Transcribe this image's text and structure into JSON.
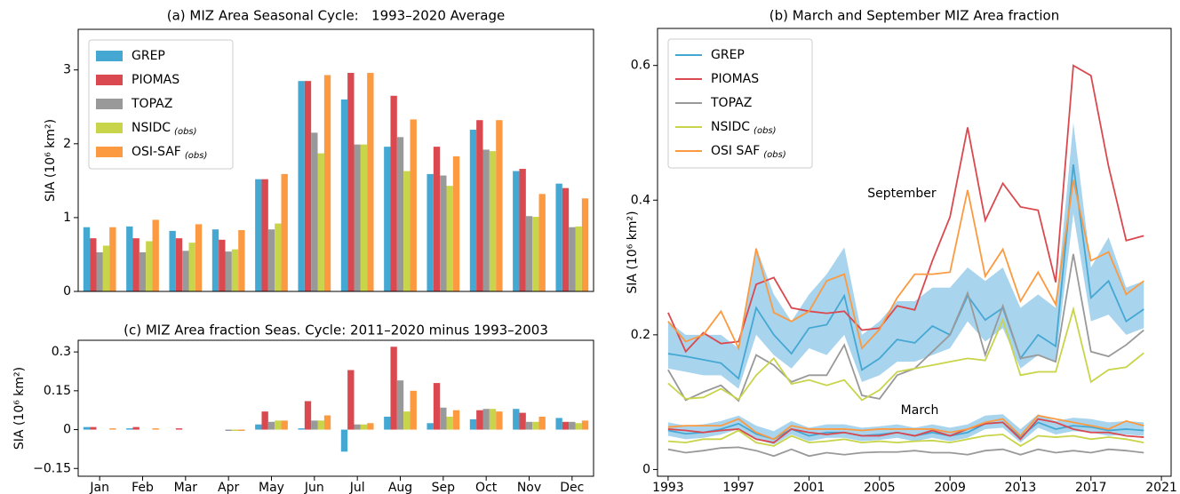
{
  "chart_data": [
    {
      "type": "bar",
      "title": "(a) MIZ Area Seasonal Cycle:   1993–2020 Average",
      "ylabel": "SIA (10⁶ km²)",
      "ylim": [
        0,
        3.55
      ],
      "yticks": [
        0,
        1,
        2,
        3
      ],
      "legend": "upper left",
      "series": [
        {
          "name": "GREP",
          "color": "#45a8d3",
          "values": [
            0.87,
            0.88,
            0.82,
            0.84,
            1.52,
            2.85,
            2.6,
            1.96,
            1.59,
            2.19,
            1.63,
            1.46
          ]
        },
        {
          "name": "PIOMAS",
          "color": "#d9494f",
          "values": [
            0.72,
            0.72,
            0.72,
            0.7,
            1.52,
            2.85,
            2.96,
            2.65,
            1.96,
            2.32,
            1.66,
            1.4
          ]
        },
        {
          "name": "TOPAZ",
          "color": "#999999",
          "values": [
            0.53,
            0.53,
            0.55,
            0.54,
            0.84,
            2.15,
            1.99,
            2.09,
            1.57,
            1.92,
            1.02,
            0.87
          ]
        },
        {
          "name": "NSIDC",
          "name_note": "(obs)",
          "color": "#c8d44a",
          "values": [
            0.62,
            0.68,
            0.66,
            0.57,
            0.92,
            1.87,
            1.99,
            1.63,
            1.43,
            1.9,
            1.01,
            0.88
          ]
        },
        {
          "name": "OSI-SAF",
          "name_note": "(obs)",
          "color": "#fb9a40",
          "values": [
            0.87,
            0.97,
            0.91,
            0.83,
            1.59,
            2.93,
            2.96,
            2.33,
            1.83,
            2.32,
            1.32,
            1.26
          ]
        }
      ]
    },
    {
      "type": "line",
      "title": "(b) March and September MIZ Area fraction",
      "ylabel": "SIA (10⁶ km²)",
      "xlim": [
        1992.4,
        2021.55
      ],
      "xticks": [
        1993,
        1997,
        2001,
        2005,
        2009,
        2013,
        2017,
        2021
      ],
      "ylim": [
        -0.01,
        0.655
      ],
      "yticks": [
        0,
        0.2,
        0.4,
        0.6
      ],
      "legend": "upper left",
      "band_color": "#a8d4ee",
      "annotations": [
        "September",
        "March"
      ],
      "x": [
        1993,
        1994,
        1995,
        1996,
        1997,
        1998,
        1999,
        2000,
        2001,
        2002,
        2003,
        2004,
        2005,
        2006,
        2007,
        2008,
        2009,
        2010,
        2011,
        2012,
        2013,
        2014,
        2015,
        2016,
        2017,
        2018,
        2019,
        2020
      ],
      "band": {
        "september": {
          "low": [
            0.15,
            0.145,
            0.14,
            0.14,
            0.12,
            0.2,
            0.17,
            0.15,
            0.18,
            0.17,
            0.2,
            0.13,
            0.14,
            0.16,
            0.16,
            0.17,
            0.18,
            0.22,
            0.19,
            0.21,
            0.15,
            0.17,
            0.16,
            0.38,
            0.22,
            0.23,
            0.2,
            0.21
          ],
          "high": [
            0.22,
            0.2,
            0.2,
            0.2,
            0.18,
            0.33,
            0.26,
            0.22,
            0.26,
            0.29,
            0.33,
            0.2,
            0.22,
            0.25,
            0.25,
            0.27,
            0.27,
            0.3,
            0.28,
            0.3,
            0.24,
            0.26,
            0.24,
            0.515,
            0.3,
            0.345,
            0.27,
            0.28
          ]
        },
        "march": {
          "low": [
            0.05,
            0.045,
            0.047,
            0.052,
            0.06,
            0.045,
            0.037,
            0.052,
            0.042,
            0.047,
            0.047,
            0.042,
            0.044,
            0.047,
            0.042,
            0.047,
            0.042,
            0.047,
            0.06,
            0.062,
            0.04,
            0.062,
            0.052,
            0.057,
            0.055,
            0.05,
            0.052,
            0.05
          ],
          "high": [
            0.07,
            0.065,
            0.067,
            0.072,
            0.08,
            0.065,
            0.057,
            0.072,
            0.062,
            0.067,
            0.067,
            0.062,
            0.064,
            0.067,
            0.062,
            0.067,
            0.062,
            0.067,
            0.08,
            0.082,
            0.06,
            0.082,
            0.072,
            0.077,
            0.075,
            0.07,
            0.072,
            0.07
          ]
        }
      },
      "series": [
        {
          "name": "GREP",
          "color": "#45a8d3",
          "september": [
            0.172,
            0.168,
            0.163,
            0.158,
            0.135,
            0.24,
            0.2,
            0.172,
            0.21,
            0.215,
            0.258,
            0.148,
            0.165,
            0.193,
            0.188,
            0.213,
            0.2,
            0.258,
            0.222,
            0.24,
            0.165,
            0.2,
            0.183,
            0.453,
            0.255,
            0.28,
            0.22,
            0.238
          ],
          "march": [
            0.058,
            0.053,
            0.055,
            0.06,
            0.068,
            0.053,
            0.045,
            0.06,
            0.05,
            0.055,
            0.055,
            0.05,
            0.052,
            0.055,
            0.05,
            0.055,
            0.05,
            0.055,
            0.068,
            0.07,
            0.048,
            0.07,
            0.06,
            0.065,
            0.063,
            0.058,
            0.06,
            0.058
          ]
        },
        {
          "name": "PIOMAS",
          "color": "#d9494f",
          "september": [
            0.233,
            0.175,
            0.203,
            0.187,
            0.19,
            0.275,
            0.285,
            0.24,
            0.235,
            0.232,
            0.235,
            0.207,
            0.21,
            0.243,
            0.237,
            0.31,
            0.375,
            0.508,
            0.37,
            0.425,
            0.39,
            0.385,
            0.278,
            0.6,
            0.585,
            0.45,
            0.34,
            0.347
          ],
          "march": [
            0.06,
            0.058,
            0.055,
            0.058,
            0.06,
            0.045,
            0.04,
            0.06,
            0.055,
            0.052,
            0.055,
            0.05,
            0.05,
            0.055,
            0.05,
            0.058,
            0.05,
            0.06,
            0.068,
            0.07,
            0.045,
            0.075,
            0.07,
            0.06,
            0.055,
            0.055,
            0.05,
            0.048
          ]
        },
        {
          "name": "TOPAZ",
          "color": "#999999",
          "september": [
            0.148,
            0.103,
            0.115,
            0.125,
            0.102,
            0.17,
            0.155,
            0.13,
            0.14,
            0.14,
            0.185,
            0.11,
            0.105,
            0.14,
            0.15,
            0.175,
            0.2,
            0.262,
            0.17,
            0.243,
            0.165,
            0.17,
            0.16,
            0.32,
            0.175,
            0.168,
            0.185,
            0.207
          ],
          "march": [
            0.03,
            0.025,
            0.028,
            0.032,
            0.033,
            0.028,
            0.02,
            0.03,
            0.02,
            0.025,
            0.022,
            0.025,
            0.026,
            0.026,
            0.028,
            0.025,
            0.025,
            0.022,
            0.028,
            0.03,
            0.022,
            0.03,
            0.025,
            0.028,
            0.025,
            0.03,
            0.028,
            0.025
          ]
        },
        {
          "name": "NSIDC",
          "name_note": "(obs)",
          "color": "#c8d44a",
          "september": [
            0.128,
            0.105,
            0.107,
            0.12,
            0.104,
            0.14,
            0.165,
            0.127,
            0.133,
            0.125,
            0.133,
            0.103,
            0.118,
            0.145,
            0.15,
            0.155,
            0.16,
            0.165,
            0.162,
            0.222,
            0.14,
            0.145,
            0.145,
            0.238,
            0.13,
            0.148,
            0.152,
            0.173
          ],
          "march": [
            0.042,
            0.04,
            0.045,
            0.045,
            0.058,
            0.04,
            0.035,
            0.05,
            0.04,
            0.042,
            0.045,
            0.04,
            0.042,
            0.04,
            0.042,
            0.043,
            0.04,
            0.045,
            0.05,
            0.052,
            0.035,
            0.05,
            0.048,
            0.05,
            0.045,
            0.048,
            0.045,
            0.04
          ]
        },
        {
          "name": "OSI SAF",
          "name_note": "(obs)",
          "color": "#fb9a40",
          "september": [
            0.22,
            0.19,
            0.2,
            0.235,
            0.18,
            0.328,
            0.233,
            0.22,
            0.235,
            0.28,
            0.29,
            0.18,
            0.208,
            0.255,
            0.29,
            0.29,
            0.293,
            0.415,
            0.287,
            0.327,
            0.25,
            0.293,
            0.245,
            0.43,
            0.31,
            0.323,
            0.26,
            0.28
          ],
          "march": [
            0.063,
            0.065,
            0.065,
            0.065,
            0.075,
            0.055,
            0.045,
            0.065,
            0.06,
            0.06,
            0.06,
            0.058,
            0.06,
            0.06,
            0.06,
            0.06,
            0.055,
            0.06,
            0.07,
            0.075,
            0.05,
            0.08,
            0.075,
            0.07,
            0.065,
            0.06,
            0.072,
            0.065
          ]
        }
      ]
    },
    {
      "type": "bar",
      "title": "(c) MIZ Area fraction Seas. Cycle: 2011–2020 minus 1993–2003",
      "ylabel": "SIA (10⁶ km²)",
      "categories": [
        "Jan",
        "Feb",
        "Mar",
        "Apr",
        "May",
        "Jun",
        "Jul",
        "Aug",
        "Sep",
        "Oct",
        "Nov",
        "Dec"
      ],
      "ylim": [
        -0.18,
        0.345
      ],
      "yticks": [
        0.3,
        0.15,
        0,
        {
          "value": -0.15,
          "label": "−0.15"
        }
      ],
      "series": [
        {
          "name": "GREP",
          "color": "#45a8d3",
          "values": [
            0.01,
            0.005,
            0,
            0,
            0.02,
            0.005,
            -0.085,
            0.05,
            0.025,
            0.04,
            0.08,
            0.045
          ]
        },
        {
          "name": "PIOMAS",
          "color": "#d9494f",
          "values": [
            0.01,
            0.01,
            0.005,
            0,
            0.07,
            0.11,
            0.23,
            0.32,
            0.18,
            0.075,
            0.065,
            0.03
          ]
        },
        {
          "name": "TOPAZ",
          "color": "#999999",
          "values": [
            0,
            0,
            0,
            -0.005,
            0.03,
            0.035,
            0.02,
            0.19,
            0.085,
            0.08,
            0.03,
            0.03
          ]
        },
        {
          "name": "NSIDC",
          "color": "#c8d44a",
          "values": [
            0,
            0,
            0,
            -0.005,
            0.035,
            0.035,
            0.02,
            0.07,
            0.05,
            0.08,
            0.03,
            0.025
          ]
        },
        {
          "name": "OSI-SAF",
          "color": "#fb9a40",
          "values": [
            0.005,
            0.005,
            0,
            -0.005,
            0.035,
            0.055,
            0.025,
            0.15,
            0.075,
            0.07,
            0.05,
            0.035
          ]
        }
      ]
    }
  ]
}
